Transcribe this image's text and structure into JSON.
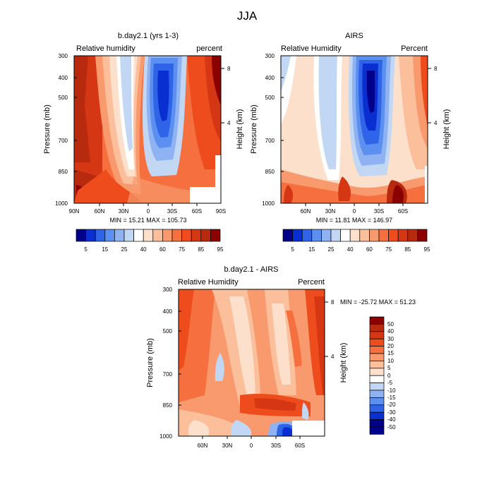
{
  "page_title": "JJA",
  "colors": {
    "blue_dark": "#00008b",
    "blue_2": "#0a2fd0",
    "blue_3": "#2f63e8",
    "blue_4": "#5b8ff0",
    "blue_5": "#8fb2f3",
    "blue_6": "#c2d7f4",
    "white": "#ffffff",
    "cream": "#fde0cc",
    "orange_1": "#fbbf9c",
    "orange_2": "#f89a6e",
    "orange_3": "#f5703e",
    "orange_4": "#ee4c1c",
    "red_1": "#d53613",
    "red_2": "#b82a0e",
    "red_dark": "#8b0000"
  },
  "chart_data": [
    {
      "id": "model",
      "type": "heatmap",
      "title": "b.day2.1 (yrs 1-3)",
      "left_label": "Relative humidity",
      "right_label": "percent",
      "ylabel": "Pressure (mb)",
      "y2label": "Height (km)",
      "x_ticks": [
        "90N",
        "60N",
        "30N",
        "0",
        "30S",
        "60S",
        "90S"
      ],
      "y_ticks": [
        "300",
        "400",
        "500",
        "700",
        "850",
        "1000"
      ],
      "y2_ticks": [
        "8",
        "4"
      ],
      "stats": "MIN =  15.21  MAX = 105.73",
      "colorbar_labels": [
        "5",
        "15",
        "25",
        "40",
        "60",
        "75",
        "85",
        "95"
      ]
    },
    {
      "id": "obs",
      "type": "heatmap",
      "title": "AIRS",
      "left_label": "Relative Humidity",
      "right_label": "Percent",
      "ylabel": "Pressure (mb)",
      "y2label": "Height (km)",
      "x_ticks": [
        "60N",
        "30N",
        "0",
        "30S",
        "60S"
      ],
      "y_ticks": [
        "300",
        "400",
        "500",
        "700",
        "850",
        "1000"
      ],
      "y2_ticks": [
        "8",
        "4"
      ],
      "stats": "MIN =  11.81  MAX = 146.97",
      "colorbar_labels": [
        "5",
        "15",
        "25",
        "40",
        "60",
        "75",
        "85",
        "95"
      ]
    },
    {
      "id": "diff",
      "type": "heatmap",
      "title": "b.day2.1 - AIRS",
      "left_label": "Relative Humidity",
      "right_label": "Percent",
      "ylabel": "Pressure (mb)",
      "y2label": "Height (km)",
      "x_ticks": [
        "60N",
        "30N",
        "0",
        "30S",
        "60S"
      ],
      "y_ticks": [
        "300",
        "400",
        "500",
        "700",
        "850",
        "1000"
      ],
      "y2_ticks": [
        "8",
        "4"
      ],
      "stats": "MIN = -25.72  MAX =  51.23",
      "colorbar_labels": [
        "50",
        "40",
        "30",
        "20",
        "15",
        "10",
        "5",
        "0",
        "-5",
        "-10",
        "-15",
        "-20",
        "-30",
        "-40",
        "-50"
      ]
    }
  ]
}
